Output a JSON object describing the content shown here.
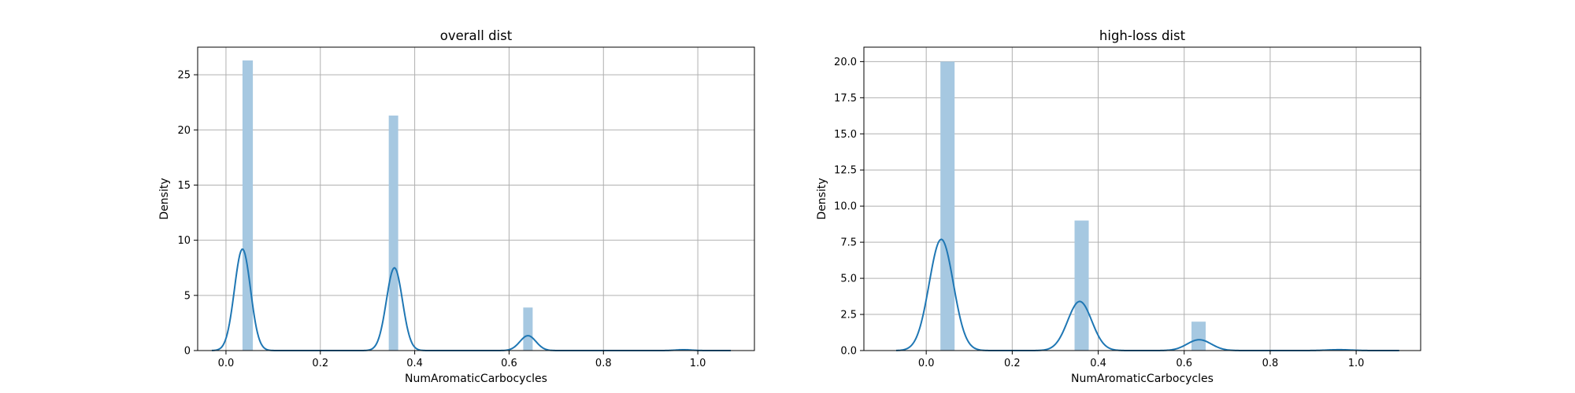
{
  "chart_data": [
    {
      "type": "bar",
      "title": "overall dist",
      "xlabel": "NumAromaticCarbocycles",
      "ylabel": "Density",
      "xlim": [
        -0.06,
        1.12
      ],
      "ylim": [
        0,
        27.5
      ],
      "xticks": [
        0.0,
        0.2,
        0.4,
        0.6,
        0.8,
        1.0
      ],
      "xtick_labels": [
        "0.0",
        "0.2",
        "0.4",
        "0.6",
        "0.8",
        "1.0"
      ],
      "yticks": [
        0,
        5,
        10,
        15,
        20,
        25
      ],
      "ytick_labels": [
        "0",
        "5",
        "10",
        "15",
        "20",
        "25"
      ],
      "grid": true,
      "bar_color": "#a6c8e1",
      "line_color": "#1f77b4",
      "histogram": [
        {
          "x0": 0.035,
          "x1": 0.057,
          "density": 26.3
        },
        {
          "x0": 0.345,
          "x1": 0.365,
          "density": 21.3
        },
        {
          "x0": 0.63,
          "x1": 0.65,
          "density": 3.9
        },
        {
          "x0": 0.96,
          "x1": 0.98,
          "density": 0.15
        }
      ],
      "kde": {
        "x_range": [
          -0.03,
          1.07
        ],
        "peaks": [
          {
            "mu": 0.035,
            "height": 9.2,
            "sigma": 0.017
          },
          {
            "mu": 0.357,
            "height": 7.5,
            "sigma": 0.017
          },
          {
            "mu": 0.64,
            "height": 1.35,
            "sigma": 0.017
          },
          {
            "mu": 0.97,
            "height": 0.07,
            "sigma": 0.017
          }
        ]
      }
    },
    {
      "type": "bar",
      "title": "high-loss dist",
      "xlabel": "NumAromaticCarbocycles",
      "ylabel": "Density",
      "xlim": [
        -0.145,
        1.15
      ],
      "ylim": [
        0,
        21.0
      ],
      "xticks": [
        0.0,
        0.2,
        0.4,
        0.6,
        0.8,
        1.0
      ],
      "xtick_labels": [
        "0.0",
        "0.2",
        "0.4",
        "0.6",
        "0.8",
        "1.0"
      ],
      "yticks": [
        0,
        2.5,
        5,
        7.5,
        10,
        12.5,
        15,
        17.5,
        20
      ],
      "ytick_labels": [
        "0.0",
        "2.5",
        "5.0",
        "7.5",
        "10.0",
        "12.5",
        "15.0",
        "17.5",
        "20.0"
      ],
      "grid": true,
      "bar_color": "#a6c8e1",
      "line_color": "#1f77b4",
      "histogram": [
        {
          "x0": 0.033,
          "x1": 0.066,
          "density": 20.0
        },
        {
          "x0": 0.345,
          "x1": 0.378,
          "density": 9.0
        },
        {
          "x0": 0.617,
          "x1": 0.65,
          "density": 2.0
        },
        {
          "x0": 0.95,
          "x1": 0.983,
          "density": 0.05
        }
      ],
      "kde": {
        "x_range": [
          -0.07,
          1.1
        ],
        "peaks": [
          {
            "mu": 0.035,
            "height": 7.7,
            "sigma": 0.028
          },
          {
            "mu": 0.357,
            "height": 3.4,
            "sigma": 0.028
          },
          {
            "mu": 0.635,
            "height": 0.75,
            "sigma": 0.028
          },
          {
            "mu": 0.96,
            "height": 0.06,
            "sigma": 0.028
          }
        ]
      }
    }
  ]
}
